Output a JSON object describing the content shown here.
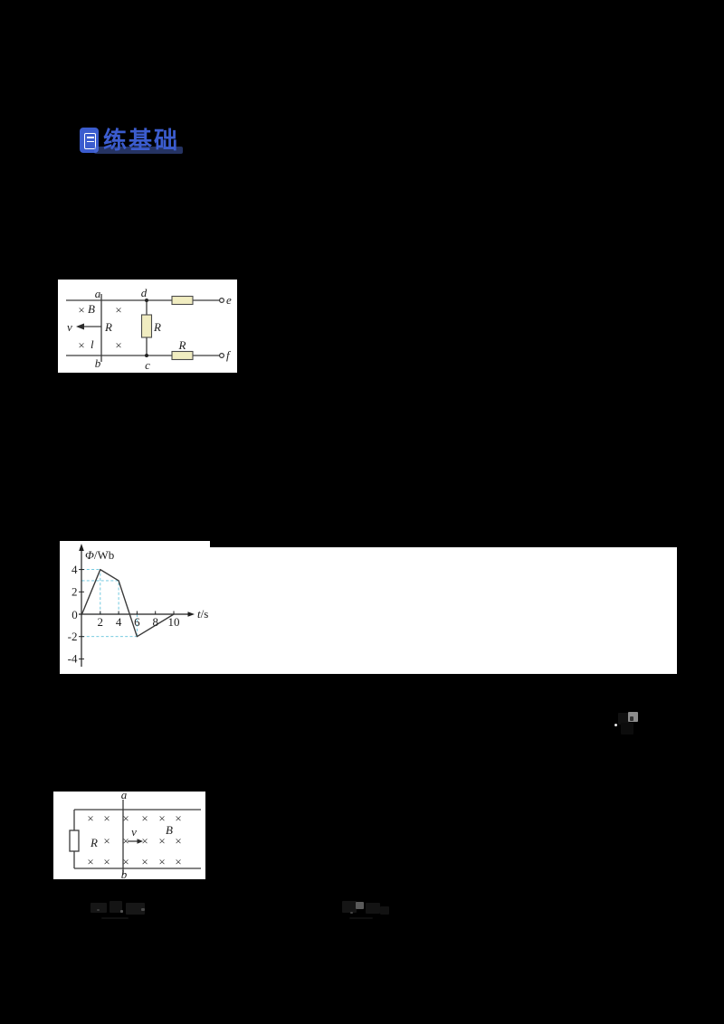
{
  "page": {
    "background": "#000000"
  },
  "badge": {
    "label": "练基础",
    "accent": "#3b5cce"
  },
  "symbols": {
    "cross": "×"
  },
  "figure1": {
    "labels": {
      "a": "a",
      "b": "b",
      "c": "c",
      "d": "d",
      "e": "e",
      "f": "f",
      "field": "B",
      "length": "l",
      "velocity": "v",
      "rod_resistance": "R",
      "middle_resistor": "R",
      "bottom_resistor": "R"
    }
  },
  "chart_data": {
    "type": "line",
    "title": "",
    "xlabel": "t/s",
    "ylabel": "Φ/Wb",
    "xlabel_var": "t",
    "xlabel_rest": "/s",
    "ylabel_var": "Φ",
    "ylabel_rest": "/Wb",
    "x_ticks": [
      2,
      4,
      6,
      8,
      10
    ],
    "y_ticks": [
      4,
      2,
      -2,
      -4
    ],
    "origin_label": "0",
    "points": [
      [
        0,
        0
      ],
      [
        2,
        4
      ],
      [
        4,
        3
      ],
      [
        6,
        -2
      ],
      [
        10,
        0
      ]
    ],
    "guides": [
      [
        2,
        4
      ],
      [
        4,
        3
      ],
      [
        6,
        -2
      ]
    ],
    "xlim": [
      0,
      12
    ],
    "ylim": [
      -4.8,
      5.2
    ],
    "grid": false,
    "legend_position": "none",
    "curve_color": "#3a3a3a",
    "guide_color": "#62c2dc"
  },
  "figure2": {
    "labels": {
      "a": "a",
      "b": "b",
      "resistor": "R",
      "field": "B",
      "velocity": "v"
    },
    "field_rows": 3,
    "field_cols": 6
  }
}
